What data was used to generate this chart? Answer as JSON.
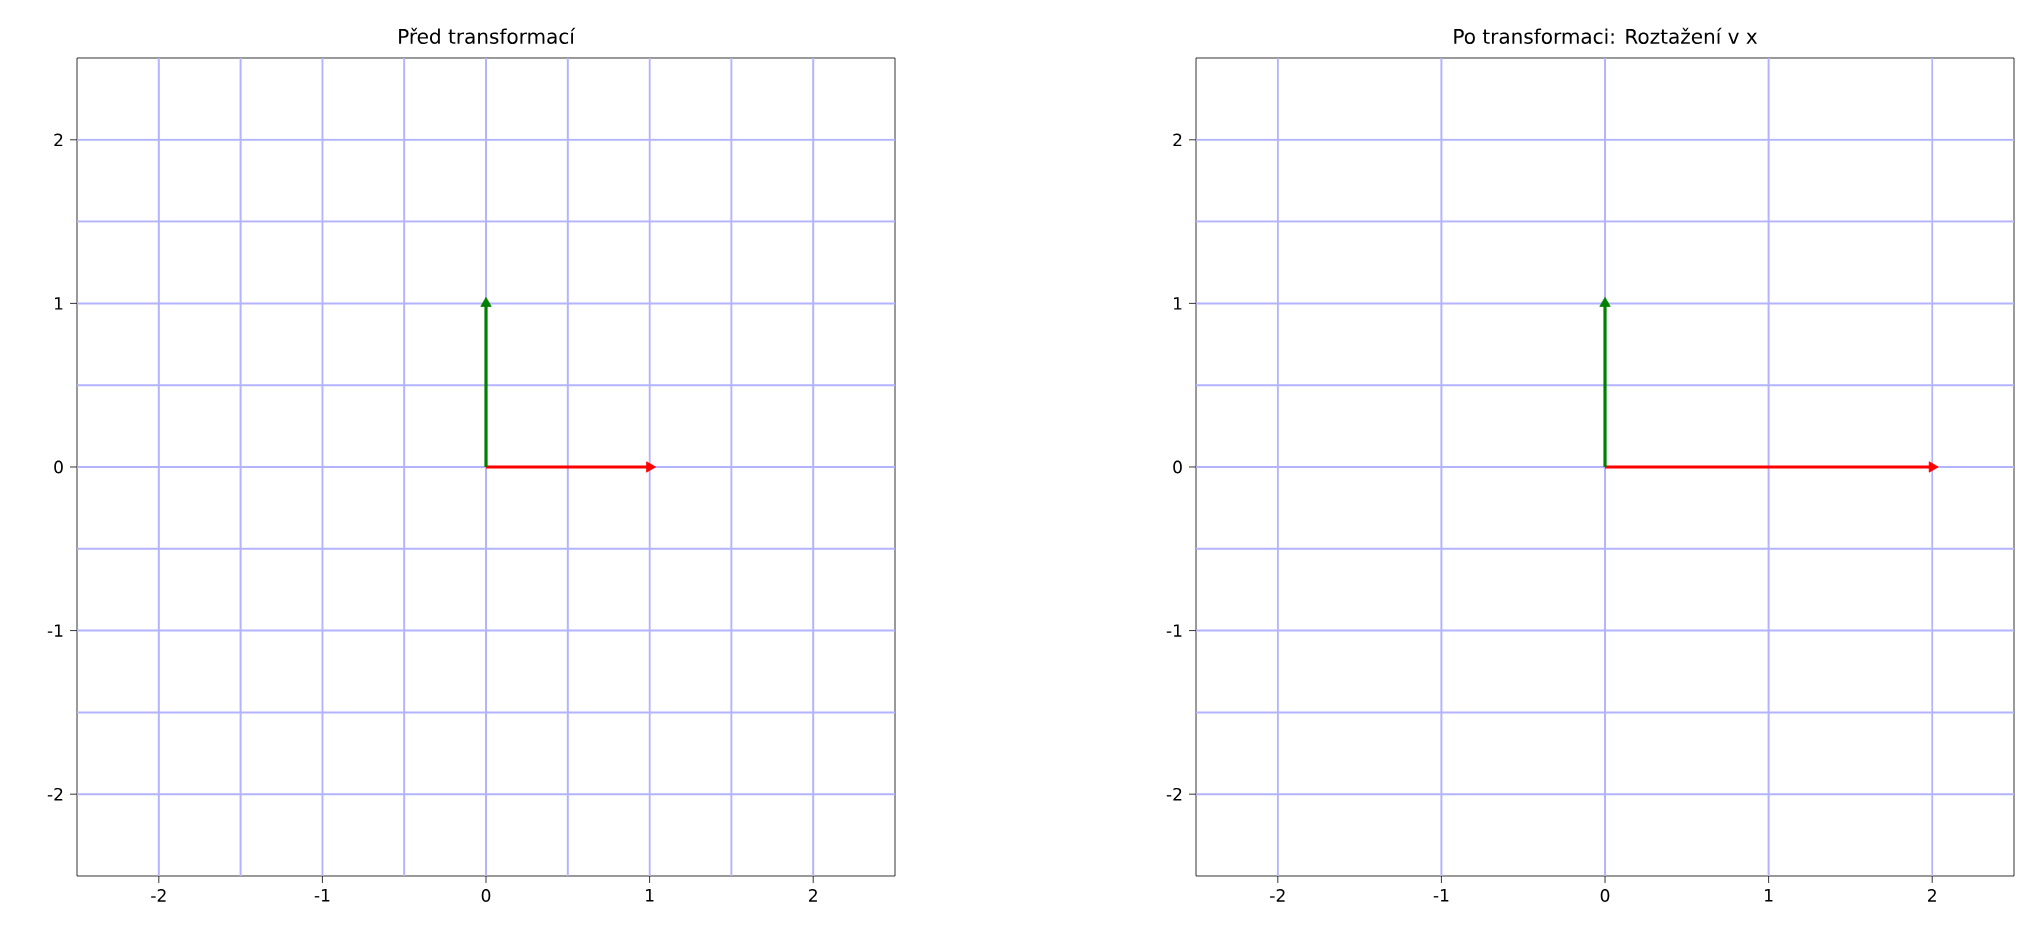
{
  "chart_data": [
    {
      "type": "line",
      "title": "Před transformací",
      "xlim": [
        -2.5,
        2.5
      ],
      "ylim": [
        -2.5,
        2.5
      ],
      "xticks": [
        -2,
        -1,
        0,
        1,
        2
      ],
      "yticks": [
        -2,
        -1,
        0,
        1,
        2
      ],
      "ref_lines": [
        {
          "axis": "x",
          "value": -2,
          "color": "#b3b3ff"
        },
        {
          "axis": "x",
          "value": -1.5,
          "color": "#b3b3ff"
        },
        {
          "axis": "x",
          "value": -1,
          "color": "#b3b3ff"
        },
        {
          "axis": "x",
          "value": -0.5,
          "color": "#b3b3ff"
        },
        {
          "axis": "x",
          "value": 0,
          "color": "#b3b3ff"
        },
        {
          "axis": "x",
          "value": 0.5,
          "color": "#b3b3ff"
        },
        {
          "axis": "x",
          "value": 1,
          "color": "#b3b3ff"
        },
        {
          "axis": "x",
          "value": 1.5,
          "color": "#b3b3ff"
        },
        {
          "axis": "x",
          "value": 2,
          "color": "#b3b3ff"
        },
        {
          "axis": "y",
          "value": -2,
          "color": "#b3b3ff"
        },
        {
          "axis": "y",
          "value": -1.5,
          "color": "#b3b3ff"
        },
        {
          "axis": "y",
          "value": -1,
          "color": "#b3b3ff"
        },
        {
          "axis": "y",
          "value": -0.5,
          "color": "#b3b3ff"
        },
        {
          "axis": "y",
          "value": 0,
          "color": "#b3b3ff"
        },
        {
          "axis": "y",
          "value": 0.5,
          "color": "#b3b3ff"
        },
        {
          "axis": "y",
          "value": 1,
          "color": "#b3b3ff"
        },
        {
          "axis": "y",
          "value": 1.5,
          "color": "#b3b3ff"
        },
        {
          "axis": "y",
          "value": 2,
          "color": "#b3b3ff"
        }
      ],
      "series": [
        {
          "color": "#ff0000",
          "x": [
            0,
            1
          ],
          "values": [
            0,
            0
          ]
        },
        {
          "color": "#008000",
          "x": [
            0,
            0
          ],
          "values": [
            0,
            1
          ]
        }
      ]
    },
    {
      "type": "line",
      "title": "Po transformaci: Roztažení v x",
      "xlim": [
        -2.5,
        2.5
      ],
      "ylim": [
        -2.5,
        2.5
      ],
      "xticks": [
        -2,
        -1,
        0,
        1,
        2
      ],
      "yticks": [
        -2,
        -1,
        0,
        1,
        2
      ],
      "ref_lines": [
        {
          "axis": "x",
          "value": -2,
          "color": "#b3b3ff"
        },
        {
          "axis": "x",
          "value": -1,
          "color": "#b3b3ff"
        },
        {
          "axis": "x",
          "value": 0,
          "color": "#b3b3ff"
        },
        {
          "axis": "x",
          "value": 1,
          "color": "#b3b3ff"
        },
        {
          "axis": "x",
          "value": 2,
          "color": "#b3b3ff"
        },
        {
          "axis": "y",
          "value": -2,
          "color": "#b3b3ff"
        },
        {
          "axis": "y",
          "value": -1.5,
          "color": "#b3b3ff"
        },
        {
          "axis": "y",
          "value": -1,
          "color": "#b3b3ff"
        },
        {
          "axis": "y",
          "value": -0.5,
          "color": "#b3b3ff"
        },
        {
          "axis": "y",
          "value": 0,
          "color": "#b3b3ff"
        },
        {
          "axis": "y",
          "value": 0.5,
          "color": "#b3b3ff"
        },
        {
          "axis": "y",
          "value": 1,
          "color": "#b3b3ff"
        },
        {
          "axis": "y",
          "value": 1.5,
          "color": "#b3b3ff"
        },
        {
          "axis": "y",
          "value": 2,
          "color": "#b3b3ff"
        }
      ],
      "series": [
        {
          "color": "#ff0000",
          "x": [
            0,
            2
          ],
          "values": [
            0,
            0
          ]
        },
        {
          "color": "#008000",
          "x": [
            0,
            0
          ],
          "values": [
            0,
            1
          ]
        }
      ]
    }
  ]
}
